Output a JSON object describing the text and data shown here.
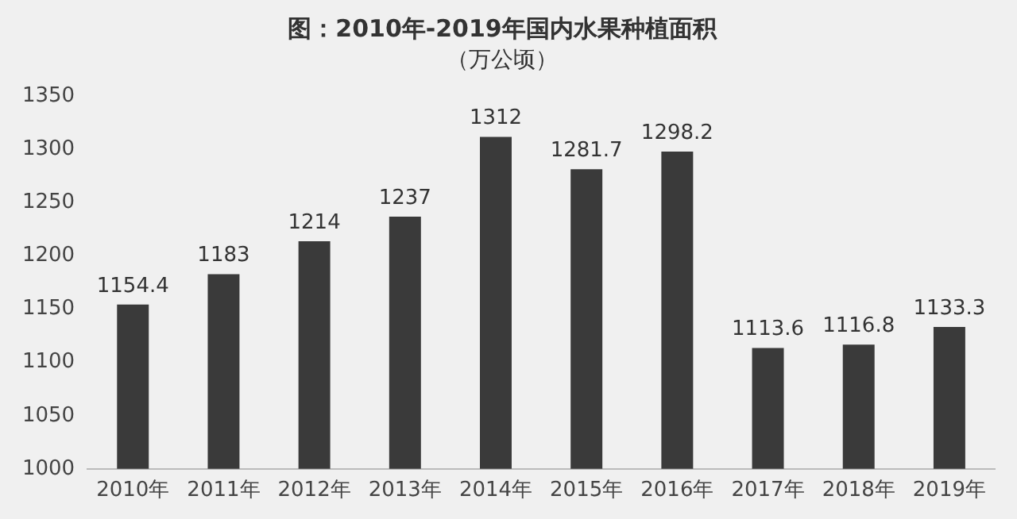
{
  "chart_data": {
    "type": "bar",
    "title": "图：2010年-2019年国内水果种植面积",
    "subtitle": "（万公顷）",
    "categories": [
      "2010年",
      "2011年",
      "2012年",
      "2013年",
      "2014年",
      "2015年",
      "2016年",
      "2017年",
      "2018年",
      "2019年"
    ],
    "values": [
      1154.4,
      1183,
      1214,
      1237,
      1312,
      1281.7,
      1298.2,
      1113.6,
      1116.8,
      1133.3
    ],
    "color": "#3a3a3a",
    "ylim": [
      1000,
      1350
    ],
    "yticks": [
      1000,
      1050,
      1100,
      1150,
      1200,
      1250,
      1300,
      1350
    ],
    "grid": false,
    "legend": false,
    "data_labels": true
  }
}
